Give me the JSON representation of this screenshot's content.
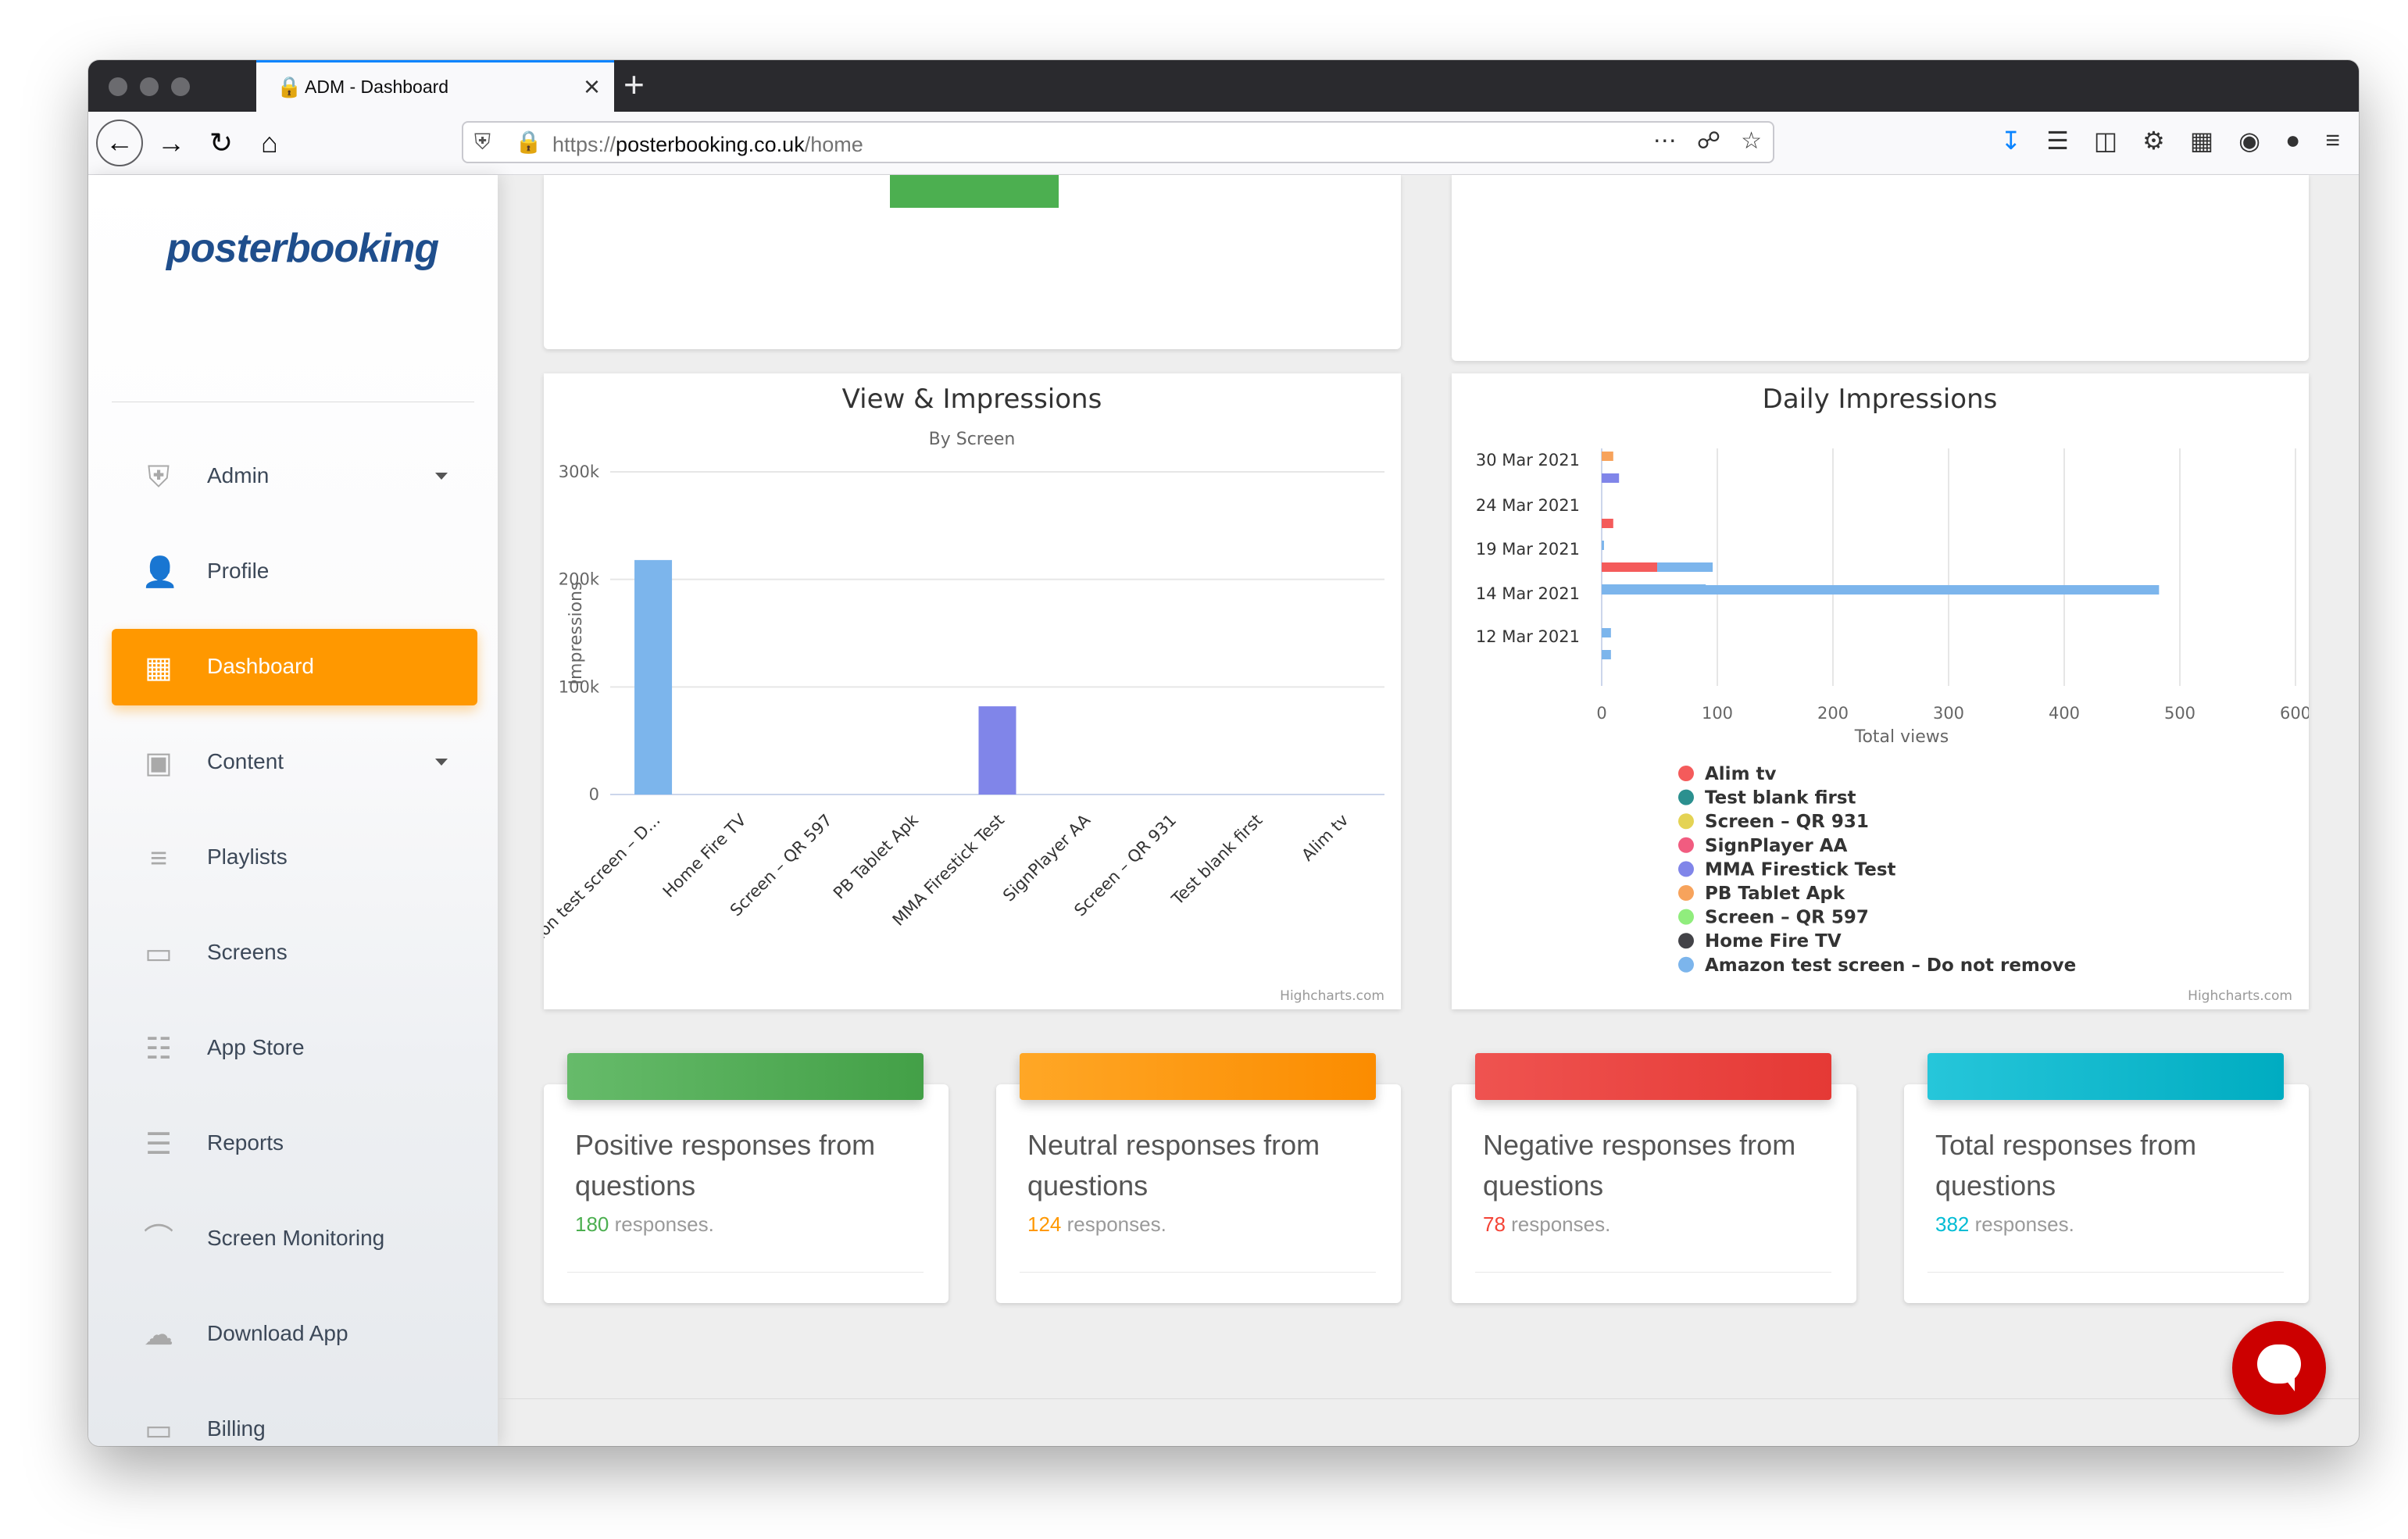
{
  "browser": {
    "tab_title": "ADM - Dashboard",
    "url_scheme": "https://",
    "url_host": "posterbooking.co.uk",
    "url_path": "/home"
  },
  "icons": {
    "back": "arrow-left-icon",
    "forward": "arrow-right-icon",
    "reload": "reload-icon",
    "home": "home-icon",
    "download": "download-icon",
    "library": "library-icon",
    "sidebar": "sidebar-icon",
    "menu": "hamburger-icon"
  },
  "sidebar": {
    "logo": "posterbooking",
    "items": [
      {
        "label": "Admin",
        "icon": "shield-user-icon",
        "caret": true
      },
      {
        "label": "Profile",
        "icon": "person-icon",
        "caret": false
      },
      {
        "label": "Dashboard",
        "icon": "dashboard-icon",
        "caret": false,
        "active": true
      },
      {
        "label": "Content",
        "icon": "image-icon",
        "caret": true
      },
      {
        "label": "Playlists",
        "icon": "playlist-add-icon",
        "caret": false
      },
      {
        "label": "Screens",
        "icon": "devices-icon",
        "caret": false
      },
      {
        "label": "App Store",
        "icon": "apps-grid-icon",
        "caret": false
      },
      {
        "label": "Reports",
        "icon": "list-icon",
        "caret": false
      },
      {
        "label": "Screen Monitoring",
        "icon": "wifi-signal-icon",
        "caret": false
      },
      {
        "label": "Download App",
        "icon": "cloud-download-icon",
        "caret": false
      },
      {
        "label": "Billing",
        "icon": "credit-card-icon",
        "caret": false
      }
    ],
    "accent_color": "#ff9800"
  },
  "view_chart": {
    "credits": "Highcharts.com",
    "chart_data": {
      "type": "bar",
      "title": "View & Impressions",
      "subtitle": "By Screen",
      "ylabel": "Impressions",
      "xlabel": "",
      "ylim": [
        0,
        300000
      ],
      "yticks": [
        "0",
        "100k",
        "200k",
        "300k"
      ],
      "ytick_values": [
        0,
        100000,
        200000,
        300000
      ],
      "categories": [
        "Amazon test screen – D...",
        "Home Fire TV",
        "Screen – QR 597",
        "PB Tablet Apk",
        "MMA Firestick Test",
        "SignPlayer AA",
        "Screen – QR 931",
        "Test blank first",
        "Alim tv"
      ],
      "values": [
        218000,
        0,
        0,
        0,
        82000,
        0,
        0,
        0,
        0
      ],
      "bar_colors": [
        "#7cb5ec",
        "#434348",
        "#90ed7d",
        "#f7a35c",
        "#8085e9",
        "#f15c80",
        "#e4d354",
        "#2b908f",
        "#f45b5b"
      ],
      "grid": true
    }
  },
  "daily_chart": {
    "credits": "Highcharts.com",
    "chart_data": {
      "type": "bar",
      "orientation": "horizontal",
      "stacked": true,
      "title": "Daily Impressions",
      "xlabel": "Total views",
      "xlim": [
        0,
        600
      ],
      "xticks": [
        0,
        100,
        200,
        300,
        400,
        500,
        600
      ],
      "categories": [
        "30 Mar 2021",
        "24 Mar 2021",
        "19 Mar 2021",
        "14 Mar 2021",
        "12 Mar 2021"
      ],
      "series": [
        {
          "name": "Alim tv",
          "color": "#f45b5b",
          "values": [
            [
              0,
              0,
              0
            ],
            [
              0,
              10,
              0
            ],
            [
              0,
              48,
              0
            ],
            [
              0,
              0,
              0
            ],
            [
              0,
              0,
              0
            ]
          ]
        },
        {
          "name": "Test blank first",
          "color": "#2b908f",
          "values": [
            [
              0,
              0,
              0
            ],
            [
              0,
              0,
              0
            ],
            [
              0,
              0,
              0
            ],
            [
              0,
              0,
              0
            ],
            [
              0,
              0,
              0
            ]
          ]
        },
        {
          "name": "Screen – QR 931",
          "color": "#e4d354",
          "values": [
            [
              0,
              0,
              0
            ],
            [
              0,
              0,
              0
            ],
            [
              0,
              0,
              0
            ],
            [
              0,
              0,
              0
            ],
            [
              0,
              0,
              0
            ]
          ]
        },
        {
          "name": "SignPlayer AA",
          "color": "#f15c80",
          "values": [
            [
              0,
              0,
              0
            ],
            [
              0,
              0,
              0
            ],
            [
              0,
              0,
              0
            ],
            [
              0,
              0,
              0
            ],
            [
              0,
              0,
              0
            ]
          ]
        },
        {
          "name": "MMA Firestick Test",
          "color": "#8085e9",
          "values": [
            [
              0,
              15,
              0
            ],
            [
              0,
              0,
              0
            ],
            [
              0,
              0,
              0
            ],
            [
              0,
              0,
              0
            ],
            [
              0,
              0,
              0
            ]
          ]
        },
        {
          "name": "PB Tablet Apk",
          "color": "#f7a35c",
          "values": [
            [
              10,
              0,
              0
            ],
            [
              0,
              0,
              0
            ],
            [
              0,
              0,
              0
            ],
            [
              0,
              0,
              0
            ],
            [
              0,
              0,
              0
            ]
          ]
        },
        {
          "name": "Screen – QR 597",
          "color": "#90ed7d",
          "values": [
            [
              0,
              0,
              0
            ],
            [
              0,
              0,
              0
            ],
            [
              0,
              0,
              0
            ],
            [
              0,
              0,
              0
            ],
            [
              0,
              0,
              0
            ]
          ]
        },
        {
          "name": "Home Fire TV",
          "color": "#434348",
          "values": [
            [
              0,
              0,
              0
            ],
            [
              0,
              0,
              0
            ],
            [
              0,
              0,
              0
            ],
            [
              0,
              0,
              0
            ],
            [
              0,
              0,
              0
            ]
          ]
        },
        {
          "name": "Amazon test screen – Do not remove",
          "color": "#7cb5ec",
          "values": [
            [
              0,
              0,
              0
            ],
            [
              0,
              0,
              2
            ],
            [
              0,
              48,
              90
            ],
            [
              482,
              0,
              0
            ],
            [
              8,
              8,
              0
            ]
          ]
        }
      ],
      "grid": true,
      "legend_position": "bottom"
    }
  },
  "stats": [
    {
      "title": "Positive responses from questions",
      "count": "180",
      "suffix": " responses.",
      "color": "#4caf50",
      "bar_from": "#66bb6a",
      "bar_to": "#43a047"
    },
    {
      "title": "Neutral responses from questions",
      "count": "124",
      "suffix": " responses.",
      "color": "#ff9800",
      "bar_from": "#ffa726",
      "bar_to": "#fb8c00"
    },
    {
      "title": "Negative responses from questions",
      "count": "78",
      "suffix": " responses.",
      "color": "#f44336",
      "bar_from": "#ef5350",
      "bar_to": "#e53935"
    },
    {
      "title": "Total responses from questions",
      "count": "382",
      "suffix": " responses.",
      "color": "#00bcd4",
      "bar_from": "#26c6da",
      "bar_to": "#00acc1"
    }
  ],
  "chat_button": {
    "icon": "chat-bubble-icon",
    "color": "#cc0000"
  }
}
